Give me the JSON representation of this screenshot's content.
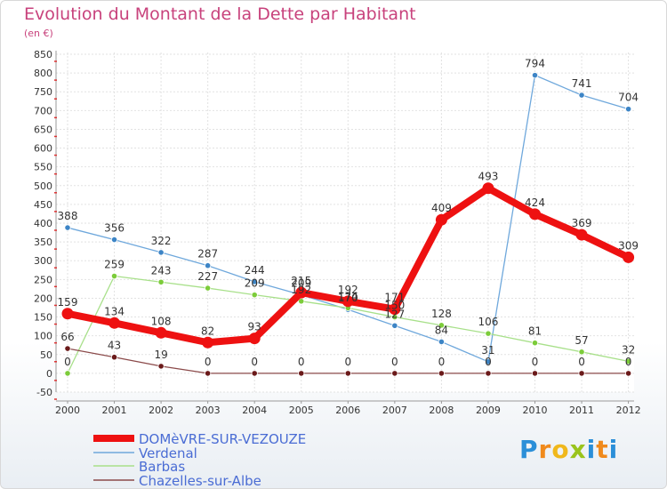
{
  "title": "Evolution du Montant de la Dette par Habitant",
  "unit_label": "(en €)",
  "logo": {
    "letters": [
      "P",
      "r",
      "o",
      "x",
      "i",
      "t",
      "i"
    ],
    "colors": [
      "#2b8fd8",
      "#f08a1c",
      "#f0b81c",
      "#9ac41c",
      "#2b8fd8",
      "#f08a1c",
      "#2b8fd8"
    ]
  },
  "chart_data": {
    "type": "line",
    "x": [
      "2000",
      "2001",
      "2002",
      "2003",
      "2004",
      "2005",
      "2006",
      "2007",
      "2008",
      "2009",
      "2010",
      "2011",
      "2012"
    ],
    "ylim": [
      -50,
      850
    ],
    "yticks": [
      -50,
      0,
      50,
      100,
      150,
      200,
      250,
      300,
      350,
      400,
      450,
      500,
      550,
      600,
      650,
      700,
      750,
      800,
      850
    ],
    "grid": true,
    "legend_position": "bottom-left",
    "series": [
      {
        "name": "DOMèVRE-SUR-VEZOUZE",
        "color": "#ee1111",
        "point_color": "#ee1111",
        "width": 8,
        "radius": 6.5,
        "values": [
          159,
          134,
          108,
          82,
          93,
          215,
          192,
          171,
          409,
          493,
          424,
          369,
          309
        ],
        "labels": [
          "159",
          "134",
          "108",
          "82",
          "93",
          "215",
          "192",
          "171",
          "409",
          "493",
          "424",
          "369",
          "309"
        ]
      },
      {
        "name": "Verdenal",
        "color": "#6fa8dc",
        "point_color": "#3d85c6",
        "width": 1.3,
        "radius": 3.2,
        "values": [
          388,
          356,
          322,
          287,
          244,
          209,
          170,
          127,
          84,
          31,
          794,
          741,
          704
        ],
        "labels": [
          "388",
          "356",
          "322",
          "287",
          "244",
          "209",
          "170",
          "127",
          "84",
          "31",
          "794",
          "741",
          "704"
        ]
      },
      {
        "name": "Barbas",
        "color": "#a8e08a",
        "point_color": "#7ccc3a",
        "width": 1.3,
        "radius": 3.2,
        "values": [
          0,
          259,
          243,
          227,
          209,
          192,
          174,
          150,
          128,
          106,
          81,
          57,
          32
        ],
        "labels": [
          "0",
          "259",
          "243",
          "227",
          "209",
          "192",
          "174",
          "150",
          "128",
          "106",
          "81",
          "57",
          "32"
        ]
      },
      {
        "name": "Chazelles-sur-Albe",
        "color": "#8b4a4a",
        "point_color": "#6b1a1a",
        "width": 1.3,
        "radius": 3.2,
        "values": [
          66,
          43,
          19,
          0,
          0,
          0,
          0,
          0,
          0,
          0,
          0,
          0,
          0
        ],
        "labels": [
          "66",
          "43",
          "19",
          "0",
          "0",
          "0",
          "0",
          "0",
          "0",
          "0",
          "0",
          "0",
          "0"
        ]
      }
    ]
  }
}
